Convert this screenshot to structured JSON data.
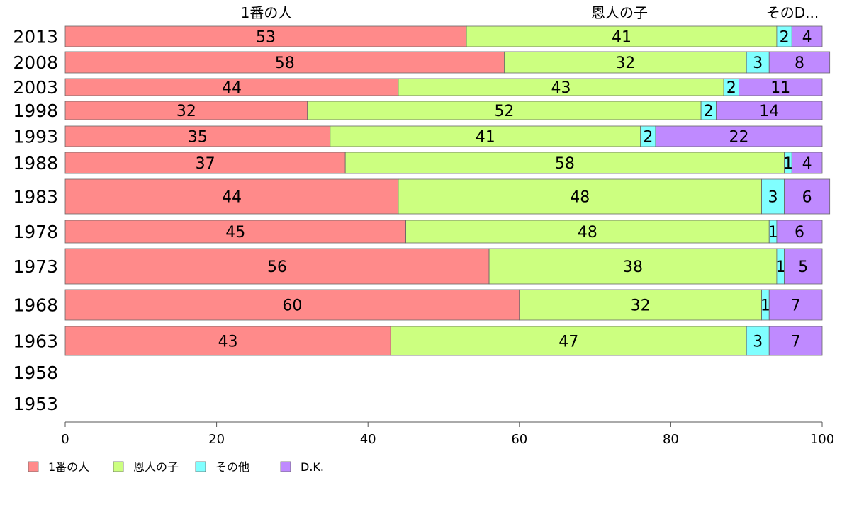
{
  "chart_data": {
    "type": "bar",
    "orientation": "horizontal",
    "stacked": true,
    "title": "",
    "xlabel": "",
    "ylabel": "",
    "xlim": [
      0,
      100
    ],
    "x_ticks": [
      0,
      20,
      40,
      60,
      80,
      100
    ],
    "grid": false,
    "legend_position": "bottom-left",
    "column_headers": [
      "1番の人",
      "恩人の子",
      "そのD..."
    ],
    "categories": [
      "2013",
      "2008",
      "2003",
      "1998",
      "1993",
      "1988",
      "1983",
      "1978",
      "1973",
      "1968",
      "1963",
      "1958",
      "1953"
    ],
    "series": [
      {
        "name": "1番の人",
        "color": "#ff8a8a",
        "values": [
          53,
          58,
          44,
          32,
          35,
          37,
          44,
          45,
          56,
          60,
          43,
          null,
          null
        ]
      },
      {
        "name": "恩人の子",
        "color": "#ccff80",
        "values": [
          41,
          32,
          43,
          52,
          41,
          58,
          48,
          48,
          38,
          32,
          47,
          null,
          null
        ]
      },
      {
        "name": "その他",
        "color": "#80ffff",
        "values": [
          2,
          3,
          2,
          2,
          2,
          1,
          3,
          1,
          1,
          1,
          3,
          null,
          null
        ]
      },
      {
        "name": "D.K.",
        "color": "#bf8aff",
        "values": [
          4,
          8,
          11,
          14,
          22,
          4,
          6,
          6,
          5,
          7,
          7,
          null,
          null
        ]
      }
    ]
  }
}
